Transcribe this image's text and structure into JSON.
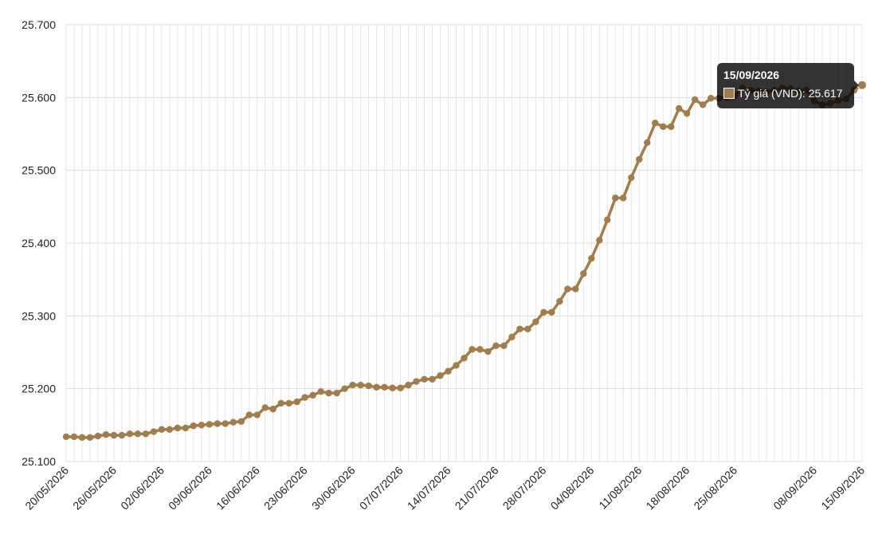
{
  "chart_data": {
    "type": "line",
    "title": "",
    "xlabel": "",
    "ylabel": "",
    "ylim": [
      25100,
      25700
    ],
    "y_ticks": [
      25100,
      25200,
      25300,
      25400,
      25500,
      25600,
      25700
    ],
    "y_tick_labels": [
      "25.100",
      "25.200",
      "25.300",
      "25.400",
      "25.500",
      "25.600",
      "25.700"
    ],
    "x_tick_labels": [
      "20/05/2026",
      "26/05/2026",
      "02/06/2026",
      "09/06/2026",
      "16/06/2026",
      "23/06/2026",
      "30/06/2026",
      "07/07/2026",
      "14/07/2026",
      "21/07/2026",
      "28/07/2026",
      "04/08/2026",
      "11/08/2026",
      "18/08/2026",
      "25/08/2026",
      "08/09/2026",
      "15/09/2026"
    ],
    "x_tick_indices": [
      0,
      6,
      12,
      18,
      24,
      30,
      36,
      42,
      48,
      54,
      60,
      66,
      72,
      78,
      84,
      94,
      100
    ],
    "grid": true,
    "legend": "none",
    "color": "#a47c48",
    "series": [
      {
        "name": "Tỷ giá (VND)",
        "values": [
          25134,
          25134,
          25133,
          25133,
          25135,
          25137,
          25136,
          25136,
          25138,
          25138,
          25138,
          25141,
          25144,
          25144,
          25146,
          25146,
          25149,
          25150,
          25151,
          25152,
          25152,
          25154,
          25155,
          25164,
          25164,
          25174,
          25172,
          25180,
          25180,
          25182,
          25188,
          25191,
          25196,
          25194,
          25194,
          25200,
          25205,
          25205,
          25204,
          25202,
          25202,
          25201,
          25201,
          25205,
          25210,
          25213,
          25213,
          25218,
          25224,
          25232,
          25242,
          25254,
          25254,
          25251,
          25259,
          25259,
          25271,
          25282,
          25282,
          25292,
          25305,
          25305,
          25320,
          25337,
          25337,
          25358,
          25379,
          25404,
          25432,
          25462,
          25462,
          25490,
          25515,
          25538,
          25565,
          25560,
          25560,
          25585,
          25578,
          25597,
          25590,
          25599,
          25599,
          25600,
          25603,
          25613,
          25610,
          25609,
          25608,
          25610,
          25613,
          25612,
          25609,
          25610,
          25595,
          25590,
          25592,
          25596,
          25598,
          25610,
          25617
        ]
      }
    ],
    "tooltip": {
      "date": "15/09/2026",
      "label": "Tỷ giá (VND): 25.617",
      "value": 25617
    }
  }
}
